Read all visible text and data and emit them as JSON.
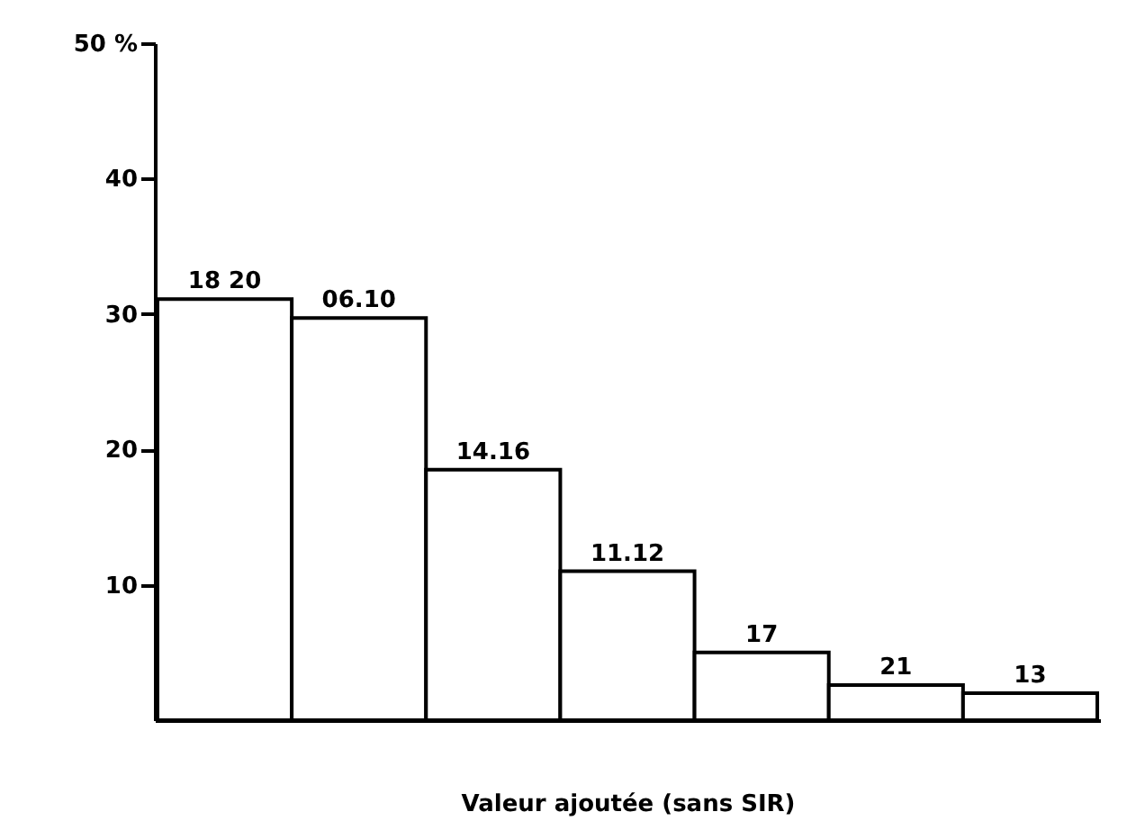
{
  "chart_data": {
    "type": "bar",
    "categories": [
      "18 20",
      "06.10",
      "14.16",
      "11.12",
      "17",
      "21",
      "13"
    ],
    "values": [
      31.1,
      29.7,
      18.5,
      11.0,
      5.0,
      2.6,
      2.0
    ],
    "color": "#ffffff",
    "xlabel": "Valeur ajoutée (sans SIR)",
    "ylim": [
      0,
      50
    ],
    "yticks": [
      10,
      20,
      30,
      40,
      {
        "value": 50,
        "label": "50 %"
      }
    ],
    "grid": false,
    "tick_labels": "y"
  }
}
